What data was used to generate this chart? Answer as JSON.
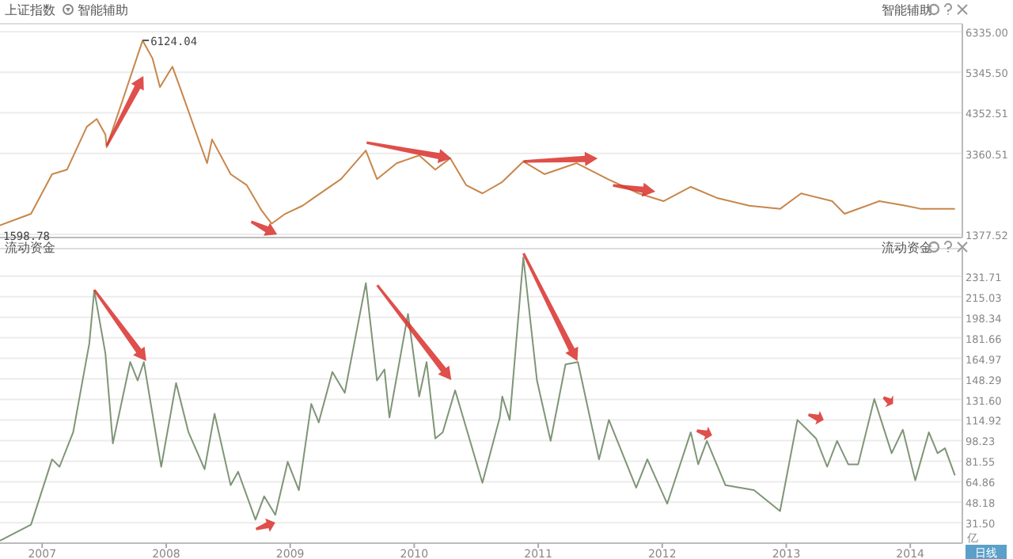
{
  "chart_data": [
    {
      "type": "line",
      "title": "上证指数",
      "subtitle": "智能辅助",
      "color": "#c8864a",
      "grid": "y",
      "tick_labels": "y",
      "x": [
        2006.66,
        2006.91,
        2007.08,
        2007.2,
        2007.36,
        2007.44,
        2007.51,
        2007.52,
        2007.65,
        2007.81,
        2007.89,
        2007.95,
        2008.05,
        2008.12,
        2008.27,
        2008.33,
        2008.37,
        2008.52,
        2008.65,
        2008.77,
        2008.85,
        2008.96,
        2009.1,
        2009.19,
        2009.41,
        2009.61,
        2009.7,
        2009.86,
        2010.04,
        2010.17,
        2010.29,
        2010.42,
        2010.55,
        2010.71,
        2010.88,
        2011.05,
        2011.31,
        2011.56,
        2011.81,
        2012.01,
        2012.23,
        2012.44,
        2012.7,
        2012.95,
        2013.12,
        2013.37,
        2013.47,
        2013.75,
        2013.96,
        2014.09,
        2014.36
      ],
      "values": [
        1600,
        1880,
        2850,
        2960,
        4010,
        4200,
        3820,
        3510,
        4670,
        6120,
        5680,
        4980,
        5480,
        4900,
        3620,
        3120,
        3700,
        2850,
        2580,
        1960,
        1640,
        1880,
        2080,
        2270,
        2730,
        3430,
        2730,
        3120,
        3310,
        2960,
        3240,
        2580,
        2380,
        2660,
        3160,
        2850,
        3120,
        2730,
        2380,
        2190,
        2540,
        2270,
        2080,
        2000,
        2380,
        2190,
        1880,
        2190,
        2080,
        2000,
        2000
      ],
      "xlim": [
        2006.66,
        2014.42
      ],
      "ylim": [
        1300,
        6530
      ],
      "yticks": [
        1377.52,
        3360.51,
        4352.51,
        {
          "value": 5345.5,
          "label": "5345.50"
        },
        {
          "value": 6335,
          "label": "6335.00"
        }
      ],
      "annotations": [
        {
          "text": "6124.04",
          "x": 2007.81,
          "y": 6124.04
        },
        {
          "text": "1598.78",
          "x": 2006.66,
          "y": 1598.78
        }
      ]
    },
    {
      "type": "line",
      "title": "流动资金",
      "ylabel": "亿",
      "color": "#7f9577",
      "grid": "y",
      "x": [
        2006.66,
        2006.91,
        2007.08,
        2007.14,
        2007.25,
        2007.38,
        2007.42,
        2007.51,
        2007.57,
        2007.71,
        2007.77,
        2007.82,
        2007.96,
        2008.08,
        2008.18,
        2008.31,
        2008.39,
        2008.52,
        2008.58,
        2008.72,
        2008.79,
        2008.88,
        2008.98,
        2009.07,
        2009.17,
        2009.23,
        2009.34,
        2009.44,
        2009.61,
        2009.7,
        2009.76,
        2009.8,
        2009.95,
        2010.04,
        2010.1,
        2010.17,
        2010.23,
        2010.33,
        2010.55,
        2010.69,
        2010.71,
        2010.77,
        2010.88,
        2010.99,
        2011.1,
        2011.22,
        2011.32,
        2011.49,
        2011.57,
        2011.79,
        2011.88,
        2012.04,
        2012.23,
        2012.29,
        2012.36,
        2012.51,
        2012.74,
        2012.95,
        2013.09,
        2013.24,
        2013.33,
        2013.41,
        2013.5,
        2013.58,
        2013.71,
        2013.85,
        2013.94,
        2014.04,
        2014.15,
        2014.22,
        2014.28,
        2014.36
      ],
      "values": [
        17,
        30,
        83,
        77,
        105,
        177,
        220,
        169,
        96,
        162,
        147,
        162,
        77,
        145,
        105,
        75,
        120,
        62,
        73,
        34,
        53,
        38,
        81,
        58,
        128,
        113,
        154,
        137,
        226,
        147,
        156,
        117,
        201,
        134,
        162,
        100,
        105,
        139,
        64,
        117,
        134,
        115,
        247,
        147,
        98,
        160,
        162,
        83,
        115,
        60,
        83,
        47,
        105,
        79,
        98,
        62,
        58,
        41,
        115,
        100,
        77,
        98,
        79,
        79,
        132,
        88,
        107,
        66,
        105,
        88,
        92,
        70
      ],
      "xlim": [
        2006.66,
        2014.42
      ],
      "ylim": [
        15,
        254
      ],
      "xticks": [
        2007,
        2008,
        2009,
        2010,
        2011,
        2012,
        2013,
        2014
      ],
      "yticks": [
        {
          "value": 31.5,
          "label": "31.50"
        },
        48.18,
        64.86,
        81.55,
        98.23,
        114.92,
        {
          "value": 131.6,
          "label": "131.60"
        },
        148.29,
        164.97,
        181.66,
        198.34,
        215.03,
        231.71
      ],
      "annotations": [
        "日线"
      ]
    }
  ]
}
